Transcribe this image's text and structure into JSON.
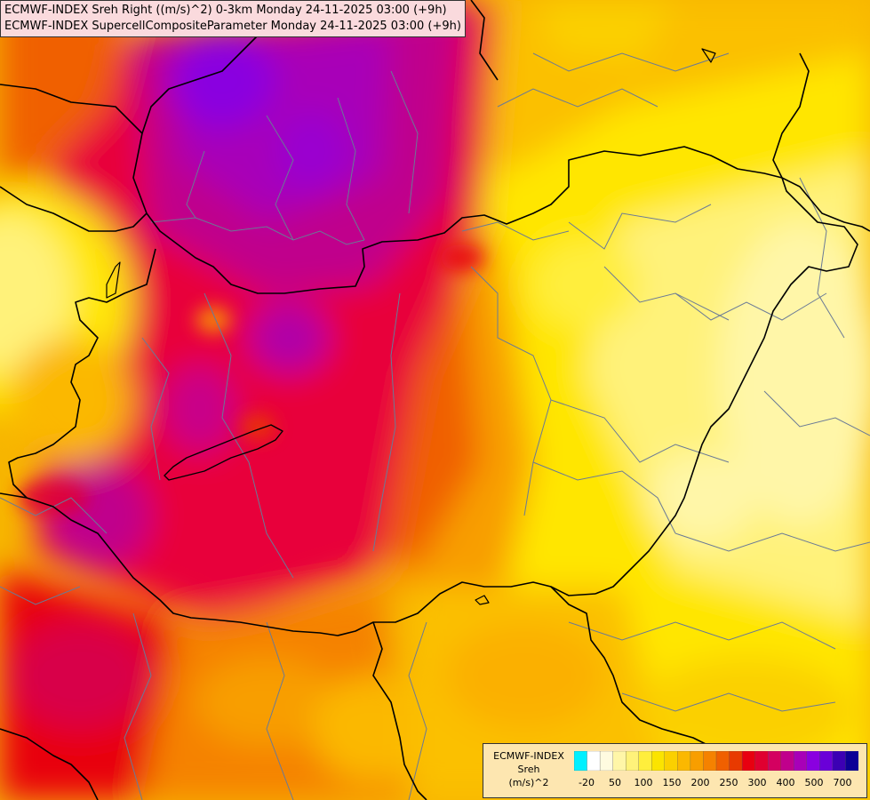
{
  "title": {
    "line1": "ECMWF-INDEX Sreh Right ((m/s)^2) 0-3km Monday 24-11-2025 03:00 (+9h)",
    "line2": "ECMWF-INDEX SupercellCompositeParameter Monday 24-11-2025 03:00 (+9h)"
  },
  "legend": {
    "model": "ECMWF-INDEX",
    "param": "Sreh",
    "unit": "(m/s)^2",
    "colors": [
      "#00f0ff",
      "#ffffff",
      "#fffbe0",
      "#fff6a8",
      "#fff27a",
      "#ffee3c",
      "#fbe400",
      "#fbd000",
      "#fbb800",
      "#f89e00",
      "#f58200",
      "#f06000",
      "#e83a00",
      "#e80010",
      "#e00030",
      "#d40060",
      "#c0008c",
      "#a800b8",
      "#8a00e0",
      "#6a00d8",
      "#3c00b4",
      "#0c0096"
    ],
    "ticks": [
      "-20",
      "50",
      "100",
      "150",
      "200",
      "250",
      "300",
      "400",
      "500",
      "700"
    ]
  },
  "colors": {
    "border": "#000000",
    "region_lines": "#6a7a96"
  }
}
